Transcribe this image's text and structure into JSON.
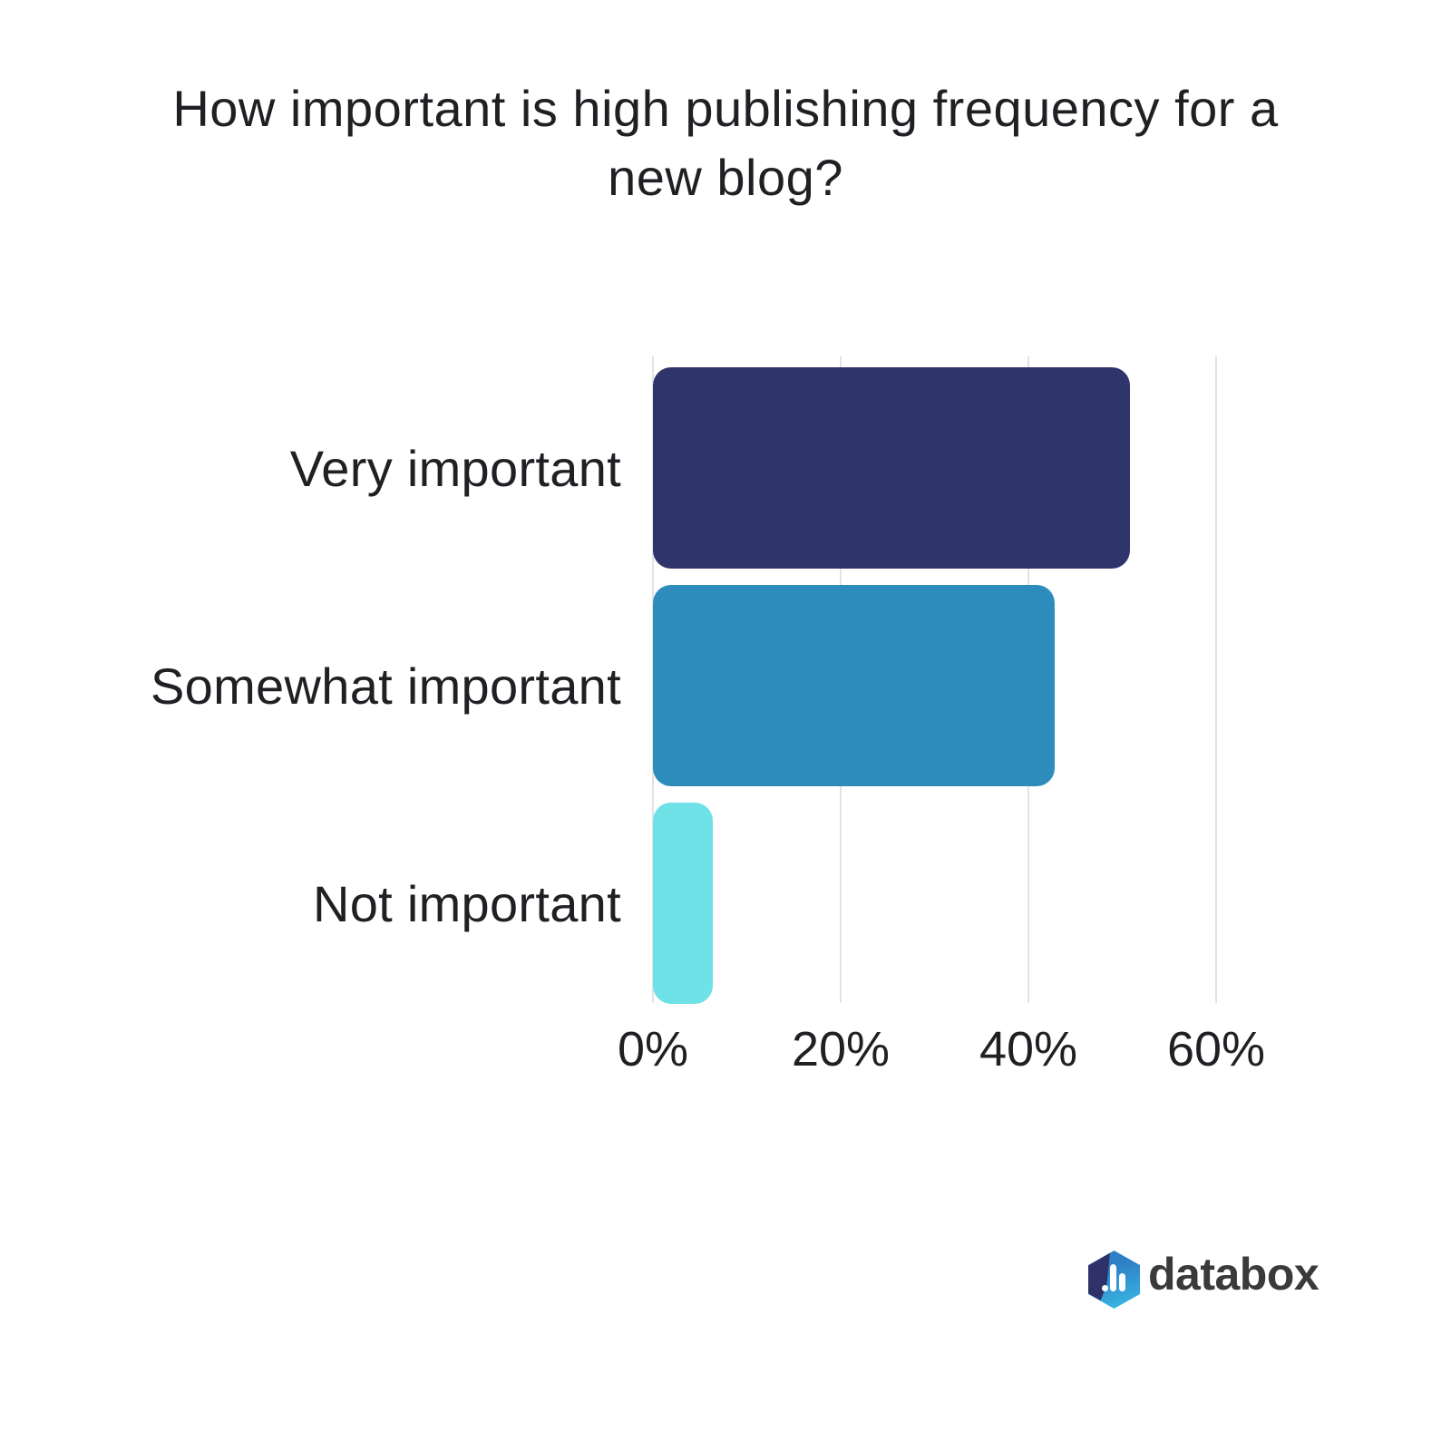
{
  "page": {
    "background": "#ffffff",
    "text_color": "#1f2023"
  },
  "chart_data": {
    "type": "bar",
    "orientation": "horizontal",
    "title": "How important is high publishing frequency for a new blog?",
    "title_lines": [
      "How important is high publishing frequency for a",
      "new blog?"
    ],
    "categories": [
      "Very important",
      "Somewhat important",
      "Not important"
    ],
    "values": [
      50.8,
      42.8,
      6.4
    ],
    "unit": "%",
    "bar_colors": [
      "#2f356b",
      "#2d8cbc",
      "#6fe2e8"
    ],
    "xlabel": "",
    "ylabel": "",
    "x_axis": {
      "tick_labels": [
        "0%",
        "20%",
        "40%",
        "60%"
      ],
      "tick_values": [
        0,
        20,
        40,
        60
      ],
      "min": 0,
      "max": 63,
      "gridlines": true,
      "gridline_color": "#e2e3e5"
    },
    "legend": "none",
    "data_labels": "none"
  },
  "branding": {
    "logo_text": "databox",
    "logo_text_color": "#3a3a3c",
    "logo_hex_blue": "#2d80c5",
    "logo_hex_cyan": "#3ab8e4",
    "logo_hex_navy": "#2f3168"
  }
}
